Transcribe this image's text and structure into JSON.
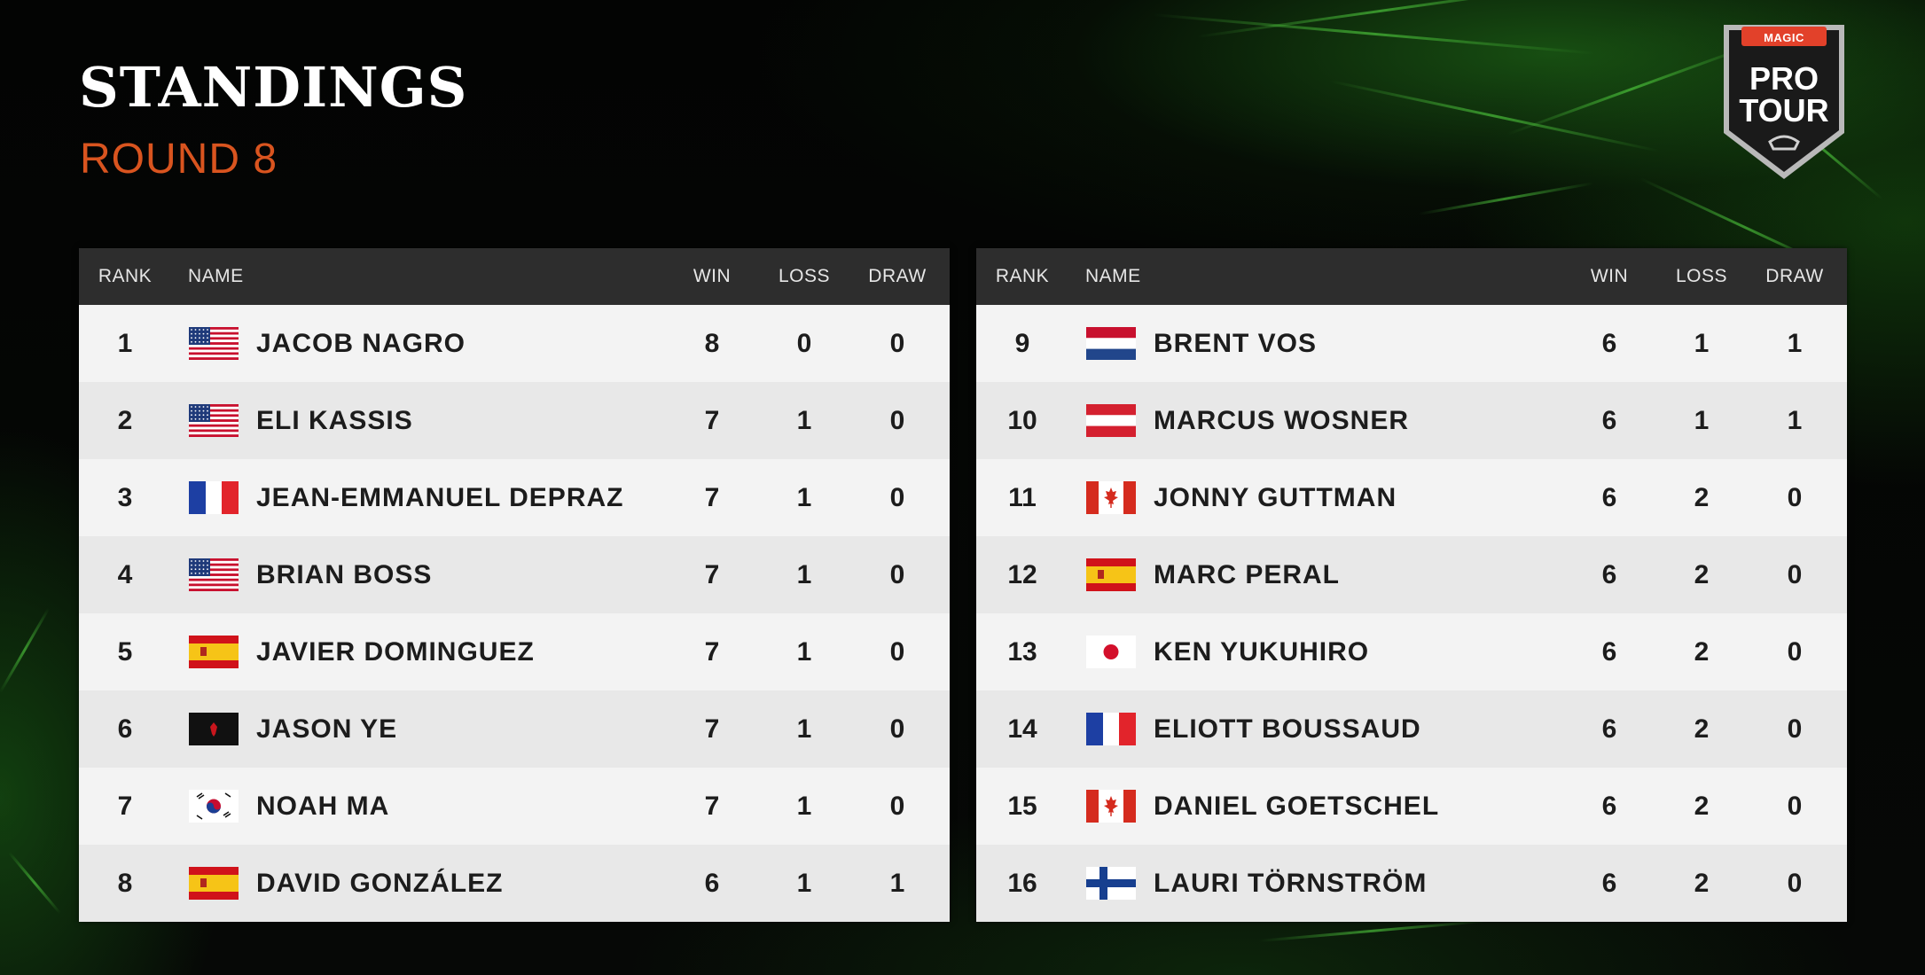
{
  "header": {
    "title": "STANDINGS",
    "subtitle": "ROUND 8"
  },
  "logo": {
    "brand": "MAGIC",
    "line1": "PRO",
    "line2": "TOUR"
  },
  "columns": {
    "rank": "RANK",
    "name": "NAME",
    "win": "WIN",
    "loss": "LOSS",
    "draw": "DRAW"
  },
  "colors": {
    "accent": "#d9541f",
    "header_bg": "#2d2d2d",
    "row_light": "#f3f3f3",
    "row_dark": "#e8e8e8"
  },
  "left_table": [
    {
      "rank": "1",
      "flag": "us-flag-icon",
      "name": "JACOB NAGRO",
      "win": "8",
      "loss": "0",
      "draw": "0"
    },
    {
      "rank": "2",
      "flag": "us-flag-icon",
      "name": "ELI KASSIS",
      "win": "7",
      "loss": "1",
      "draw": "0"
    },
    {
      "rank": "3",
      "flag": "fr-flag-icon",
      "name": "JEAN-EMMANUEL DEPRAZ",
      "win": "7",
      "loss": "1",
      "draw": "0"
    },
    {
      "rank": "4",
      "flag": "us-flag-icon",
      "name": "BRIAN BOSS",
      "win": "7",
      "loss": "1",
      "draw": "0"
    },
    {
      "rank": "5",
      "flag": "es-flag-icon",
      "name": "JAVIER DOMINGUEZ",
      "win": "7",
      "loss": "1",
      "draw": "0"
    },
    {
      "rank": "6",
      "flag": "black-flag-icon",
      "name": "JASON YE",
      "win": "7",
      "loss": "1",
      "draw": "0"
    },
    {
      "rank": "7",
      "flag": "kr-flag-icon",
      "name": "NOAH MA",
      "win": "7",
      "loss": "1",
      "draw": "0"
    },
    {
      "rank": "8",
      "flag": "es-flag-icon",
      "name": "DAVID GONZÁLEZ",
      "win": "6",
      "loss": "1",
      "draw": "1"
    }
  ],
  "right_table": [
    {
      "rank": "9",
      "flag": "nl-flag-icon",
      "name": "BRENT VOS",
      "win": "6",
      "loss": "1",
      "draw": "1"
    },
    {
      "rank": "10",
      "flag": "at-flag-icon",
      "name": "MARCUS WOSNER",
      "win": "6",
      "loss": "1",
      "draw": "1"
    },
    {
      "rank": "11",
      "flag": "ca-flag-icon",
      "name": "JONNY GUTTMAN",
      "win": "6",
      "loss": "2",
      "draw": "0"
    },
    {
      "rank": "12",
      "flag": "es-flag-icon",
      "name": "MARC PERAL",
      "win": "6",
      "loss": "2",
      "draw": "0"
    },
    {
      "rank": "13",
      "flag": "jp-flag-icon",
      "name": "KEN YUKUHIRO",
      "win": "6",
      "loss": "2",
      "draw": "0"
    },
    {
      "rank": "14",
      "flag": "fr-flag-icon",
      "name": "ELIOTT BOUSSAUD",
      "win": "6",
      "loss": "2",
      "draw": "0"
    },
    {
      "rank": "15",
      "flag": "ca-flag-icon",
      "name": "DANIEL GOETSCHEL",
      "win": "6",
      "loss": "2",
      "draw": "0"
    },
    {
      "rank": "16",
      "flag": "fi-flag-icon",
      "name": "LAURI TÖRNSTRÖM",
      "win": "6",
      "loss": "2",
      "draw": "0"
    }
  ]
}
